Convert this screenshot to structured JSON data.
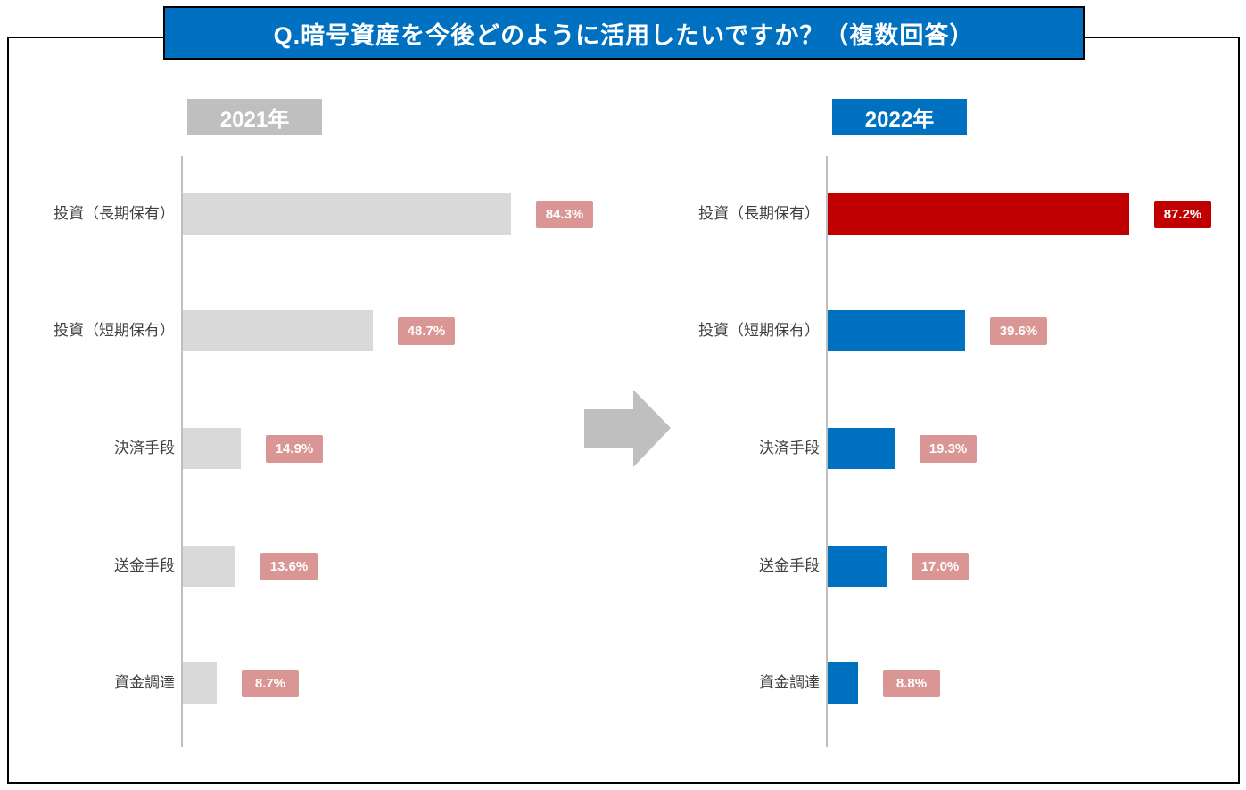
{
  "title": "Q.暗号資産を今後どのように活用したいですか？（複数回答）",
  "colors": {
    "title_bg": "#0070C0",
    "border": "#000000",
    "value_badge_default": "#D99694",
    "highlight": "#C00000",
    "bar_2021": "#D9D9D9",
    "bar_2022": "#0070C0",
    "year_badge_2021": "#BFBFBF",
    "year_badge_2022": "#0070C0",
    "arrow": "#BFBFBF",
    "axis": "#BFBFBF"
  },
  "chart_data": {
    "type": "bar",
    "orientation": "horizontal",
    "title": "Q.暗号資産を今後どのように活用したいですか？（複数回答）",
    "categories": [
      "投資（長期保有）",
      "投資（短期保有）",
      "決済手段",
      "送金手段",
      "資金調達"
    ],
    "series": [
      {
        "name": "2021年",
        "values": [
          84.3,
          48.7,
          14.9,
          13.6,
          8.7
        ],
        "value_labels": [
          "84.3%",
          "48.7%",
          "14.9%",
          "13.6%",
          "8.7%"
        ],
        "year_badge_color": "#BFBFBF",
        "bar_colors": [
          "#D9D9D9",
          "#D9D9D9",
          "#D9D9D9",
          "#D9D9D9",
          "#D9D9D9"
        ],
        "badge_colors": [
          "#D99694",
          "#D99694",
          "#D99694",
          "#D99694",
          "#D99694"
        ]
      },
      {
        "name": "2022年",
        "values": [
          87.2,
          39.6,
          19.3,
          17.0,
          8.8
        ],
        "value_labels": [
          "87.2%",
          "39.6%",
          "19.3%",
          "17.0%",
          "8.8%"
        ],
        "year_badge_color": "#0070C0",
        "bar_colors": [
          "#C00000",
          "#0070C0",
          "#0070C0",
          "#0070C0",
          "#0070C0"
        ],
        "badge_colors": [
          "#C00000",
          "#D99694",
          "#D99694",
          "#D99694",
          "#D99694"
        ]
      }
    ],
    "xlim": [
      0,
      100
    ],
    "grid": false,
    "legend_position": "above-panels",
    "value_label_suffix": "%"
  }
}
